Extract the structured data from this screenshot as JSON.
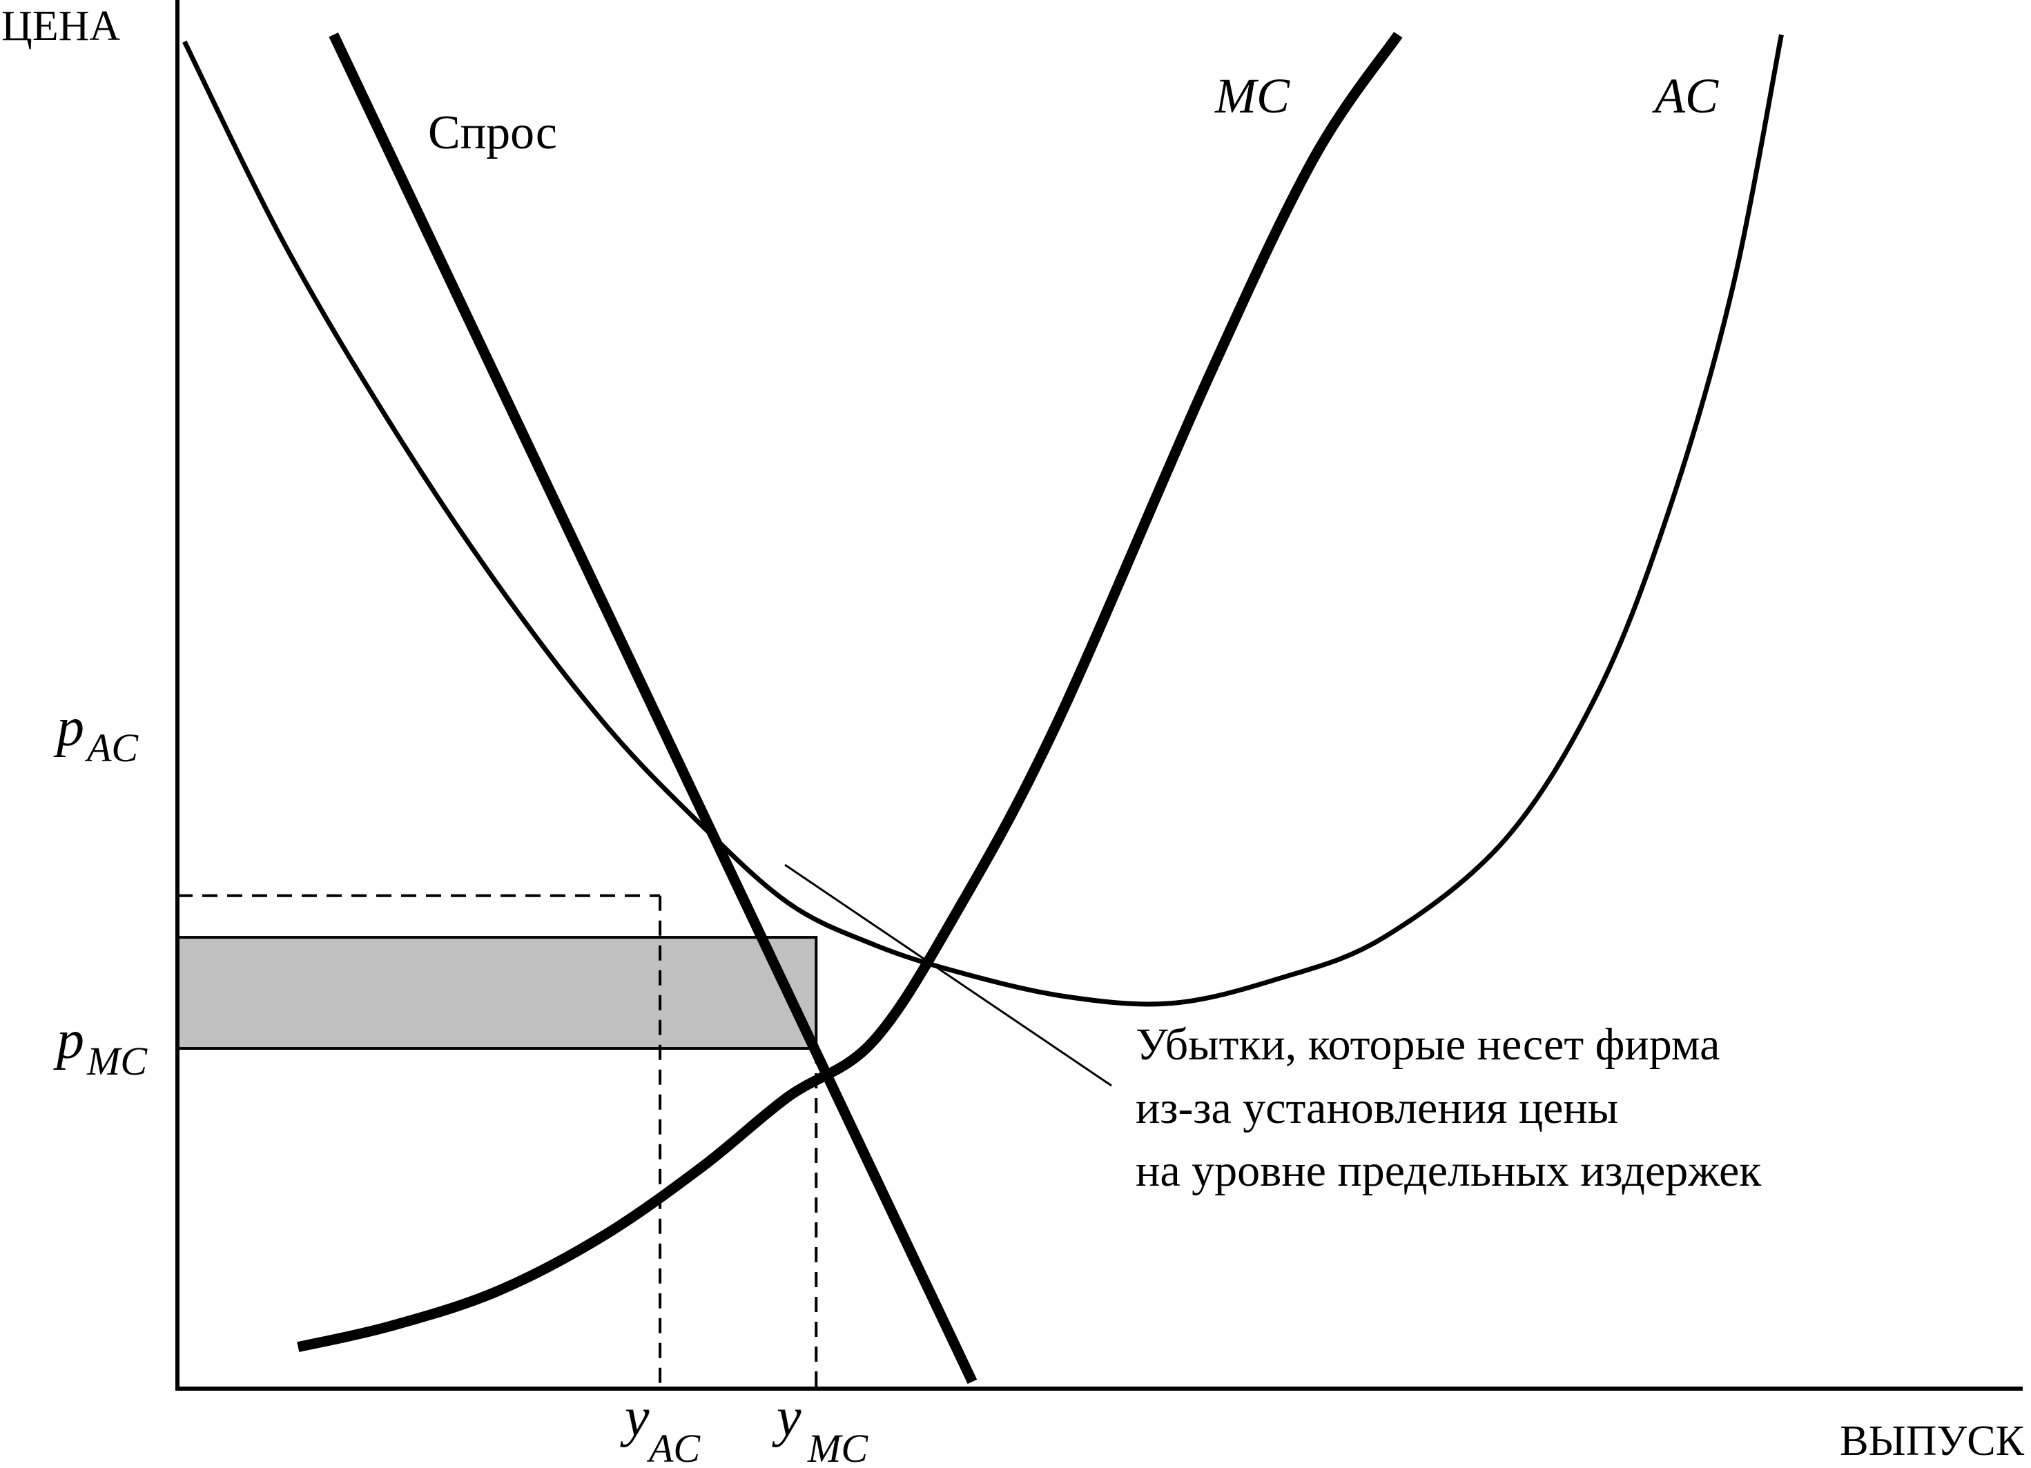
{
  "chart_data": {
    "type": "line",
    "title": "",
    "ylabel": "ЦЕНА",
    "xlabel": "ВЫПУСК",
    "grid": false,
    "legend": "none",
    "series": [
      {
        "name": "Спрос",
        "style": "thick",
        "color": "#000000",
        "x": [
          2.2,
          11.2
        ],
        "y": [
          19.5,
          0.1
        ]
      },
      {
        "name": "MC",
        "style": "thick",
        "color": "#000000",
        "x": [
          1.7,
          3.0,
          4.5,
          6.0,
          7.4,
          8.6,
          9.8,
          11.0,
          12.4,
          14.5,
          16.0,
          17.2
        ],
        "y": [
          0.6,
          0.9,
          1.4,
          2.2,
          3.2,
          4.2,
          5.0,
          6.9,
          9.6,
          14.5,
          17.7,
          19.5
        ]
      },
      {
        "name": "AC",
        "style": "thin",
        "color": "#000000",
        "x": [
          0.1,
          1.5,
          3.0,
          4.5,
          6.0,
          7.3,
          8.6,
          9.8,
          11.0,
          12.5,
          14.0,
          15.5,
          17.0,
          18.7,
          20.0,
          21.0,
          21.9,
          22.6
        ],
        "y": [
          19.4,
          16.5,
          13.9,
          11.6,
          9.6,
          8.2,
          7.0,
          6.4,
          6.0,
          5.65,
          5.55,
          5.9,
          6.5,
          7.9,
          10.0,
          12.6,
          15.8,
          19.5
        ]
      }
    ],
    "points": {
      "y_AC": 6.8,
      "p_AC": 7.1,
      "y_MC": 9.0,
      "p_MC": 4.9,
      "ac_at_y_MC": 6.5
    },
    "xlim": [
      0,
      26
    ],
    "ylim": [
      0,
      20
    ],
    "shaded_region": {
      "color": "#c0c0c0"
    },
    "labels": {
      "demand": "Спрос",
      "mc": "MC",
      "ac": "AC",
      "p_base": "p",
      "p_ac_sub": "AC",
      "p_mc_sub": "MC",
      "y_base": "y",
      "y_ac_sub": "AC",
      "y_mc_sub": "MC"
    },
    "annotation": {
      "lines": [
        "Убытки, которые несет фирма",
        "из-за установления цены",
        "на уровне предельных издержек"
      ]
    }
  }
}
